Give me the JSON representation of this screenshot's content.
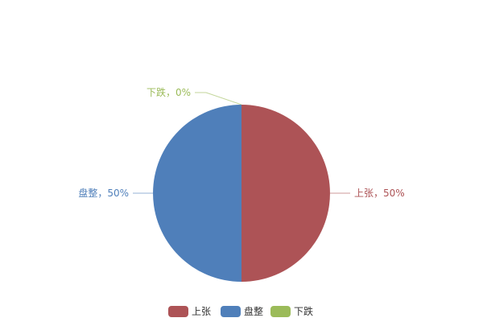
{
  "chart_data": {
    "type": "pie",
    "title": "",
    "legend_position": "bottom",
    "series": [
      {
        "name": "上张",
        "value": 50,
        "label": "上张，50%",
        "color": "#AD5356"
      },
      {
        "name": "盘整",
        "value": 50,
        "label": "盘整，50%",
        "color": "#4F7FBA"
      },
      {
        "name": "下跌",
        "value": 0,
        "label": "下跌，0%",
        "color": "#9BBB59"
      }
    ]
  }
}
